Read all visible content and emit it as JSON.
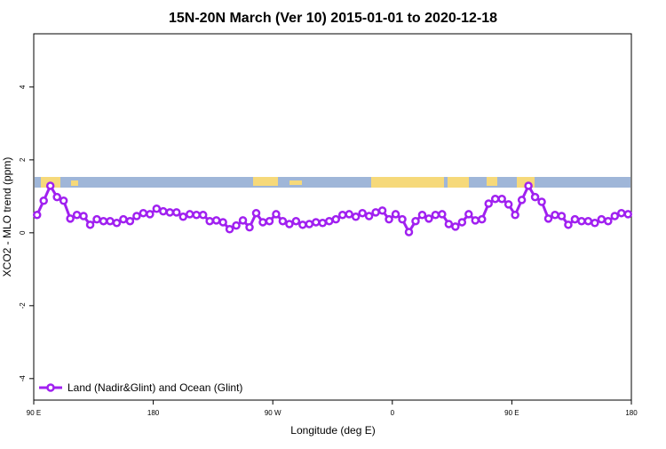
{
  "chart_data": {
    "type": "line",
    "title": "15N-20N March (Ver 10)   2015-01-01 to 2020-12-18",
    "xlabel": "Longitude (deg E)",
    "ylabel": "XCO2 - MLO trend (ppm)",
    "xlim": [
      90,
      540
    ],
    "ylim": [
      -4.59,
      5.46
    ],
    "xticks": [
      {
        "value": 90,
        "label": "90 E"
      },
      180,
      {
        "value": 270,
        "label": "90 W"
      },
      {
        "value": 360,
        "label": "0"
      },
      {
        "value": 450,
        "label": "90 E"
      },
      {
        "value": 540,
        "label": "180"
      }
    ],
    "yticks": [
      -4,
      -2,
      0,
      2,
      4
    ],
    "legend": "bottom-left",
    "x": [
      92.5,
      97.5,
      102.5,
      107.5,
      112.5,
      117.5,
      122.5,
      127.5,
      132.5,
      137.5,
      142.5,
      147.5,
      152.5,
      157.5,
      162.5,
      167.5,
      172.5,
      177.5,
      182.5,
      187.5,
      192.5,
      197.5,
      202.5,
      207.5,
      212.5,
      217.5,
      222.5,
      227.5,
      232.5,
      237.5,
      242.5,
      247.5,
      252.5,
      257.5,
      262.5,
      267.5,
      272.5,
      277.5,
      282.5,
      287.5,
      292.5,
      297.5,
      302.5,
      307.5,
      312.5,
      317.5,
      322.5,
      327.5,
      332.5,
      337.5,
      342.5,
      347.5,
      352.5,
      357.5,
      362.5,
      367.5,
      372.5,
      377.5,
      382.5,
      387.5,
      392.5,
      397.5,
      402.5,
      407.5,
      412.5,
      417.5,
      422.5,
      427.5,
      432.5,
      437.5,
      442.5,
      447.5,
      452.5,
      457.5,
      462.5,
      467.5,
      472.5,
      477.5,
      482.5,
      487.5,
      492.5,
      497.5,
      502.5,
      507.5,
      512.5,
      517.5,
      522.5,
      527.5,
      532.5,
      537.5
    ],
    "series": [
      {
        "name": "Land (Nadir&Glint) and Ocean (Glint)",
        "color": "#a020f0",
        "values": [
          0.49,
          0.88,
          1.29,
          0.98,
          0.88,
          0.39,
          0.49,
          0.46,
          0.22,
          0.37,
          0.32,
          0.32,
          0.27,
          0.37,
          0.32,
          0.46,
          0.54,
          0.51,
          0.66,
          0.59,
          0.56,
          0.56,
          0.44,
          0.51,
          0.49,
          0.49,
          0.32,
          0.34,
          0.29,
          0.1,
          0.2,
          0.34,
          0.15,
          0.54,
          0.29,
          0.32,
          0.51,
          0.32,
          0.24,
          0.32,
          0.22,
          0.24,
          0.29,
          0.27,
          0.32,
          0.37,
          0.49,
          0.51,
          0.44,
          0.54,
          0.46,
          0.56,
          0.61,
          0.37,
          0.51,
          0.37,
          0.02,
          0.32,
          0.49,
          0.39,
          0.49,
          0.51,
          0.24,
          0.17,
          0.29,
          0.51,
          0.34,
          0.37,
          0.8,
          0.93,
          0.93,
          0.78,
          0.49,
          0.9,
          1.29,
          0.98,
          0.85,
          0.39,
          0.49,
          0.46,
          0.22,
          0.37,
          0.32,
          0.32,
          0.27,
          0.37,
          0.32,
          0.46,
          0.54,
          0.51
        ]
      }
    ]
  }
}
